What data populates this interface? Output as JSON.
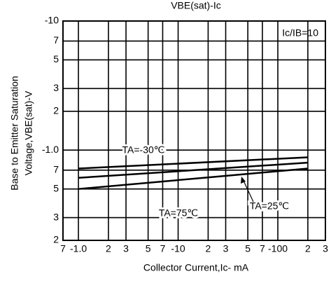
{
  "chart_data": {
    "type": "line",
    "title": "VBE(sat)-Ic",
    "x_label": "Collector Current,Ic- mA",
    "y_label": [
      "Base to Emitter Saturation",
      "Voltage,VBE(sat)-V"
    ],
    "annotation": "Ic/IB=10",
    "x_scale": "log",
    "y_scale": "log",
    "grid": true,
    "xlim": [
      0.7,
      300
    ],
    "ylim": [
      0.2,
      10
    ],
    "xticks": [
      {
        "value": 0.7,
        "label": "7"
      },
      {
        "value": 1,
        "label": "-1.0"
      },
      2,
      3,
      5,
      7,
      {
        "value": 10,
        "label": "-10"
      },
      {
        "value": 20,
        "label": "2"
      },
      {
        "value": 30,
        "label": "3"
      },
      {
        "value": 50,
        "label": "5"
      },
      {
        "value": 70,
        "label": "7"
      },
      {
        "value": 100,
        "label": "-100"
      },
      {
        "value": 200,
        "label": "2"
      },
      {
        "value": 300,
        "label": "3"
      }
    ],
    "yticks": [
      {
        "value": 10,
        "label": "-10"
      },
      7,
      5,
      3,
      2,
      {
        "value": 1,
        "label": "-1.0"
      },
      {
        "value": 0.7,
        "label": "7"
      },
      {
        "value": 0.5,
        "label": "5"
      },
      {
        "value": 0.3,
        "label": "3"
      },
      {
        "value": 0.2,
        "label": "2"
      }
    ],
    "x": [
      1,
      200
    ],
    "series": [
      {
        "name": "TA=-30℃",
        "color": "#000000",
        "values": [
          0.72,
          0.88
        ]
      },
      {
        "name": "TA=25℃",
        "color": "#000000",
        "values": [
          0.61,
          0.8
        ]
      },
      {
        "name": "TA=75℃",
        "color": "#000000",
        "values": [
          0.5,
          0.72
        ]
      }
    ]
  }
}
